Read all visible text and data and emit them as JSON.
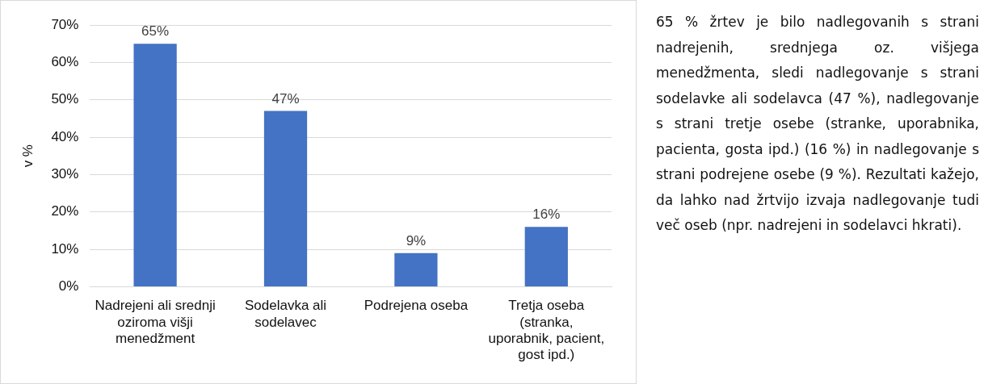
{
  "chart_data": {
    "type": "bar",
    "ylabel": "v %",
    "categories": [
      "Nadrejeni ali srednji oziroma višji menedžment",
      "Sodelavka ali sodelavec",
      "Podrejena oseba",
      "Tretja oseba (stranka, uporabnik, pacient, gost ipd.)"
    ],
    "values": [
      65,
      47,
      9,
      16
    ],
    "value_labels": [
      "65%",
      "47%",
      "9%",
      "16%"
    ],
    "color": "#4472c4",
    "ylim": [
      0,
      70
    ],
    "yticks": [
      {
        "value": 0,
        "label": "0%"
      },
      {
        "value": 10,
        "label": "10%"
      },
      {
        "value": 20,
        "label": "20%"
      },
      {
        "value": 30,
        "label": "30%"
      },
      {
        "value": 40,
        "label": "40%"
      },
      {
        "value": 50,
        "label": "50%"
      },
      {
        "value": 60,
        "label": "60%"
      },
      {
        "value": 70,
        "label": "70%"
      }
    ],
    "grid": "y",
    "legend": false,
    "annotations": [
      "65 % žrtev je bilo nadlegovanih s strani nadrejenih, srednjega oz. višjega menedžmenta, sledi nadlegovanje s strani sodelavke ali sodelavca (47 %), nadlegovanje s strani tretje osebe (stranke, uporabnika, pacienta, gosta ipd.) (16 %) in nadlegovanje s strani podrejene osebe (9 %). Rezultati kažejo, da lahko nad žrtvijo izvaja nadlegovanje tudi več oseb (npr. nadrejeni in sodelavci hkrati)."
    ]
  }
}
